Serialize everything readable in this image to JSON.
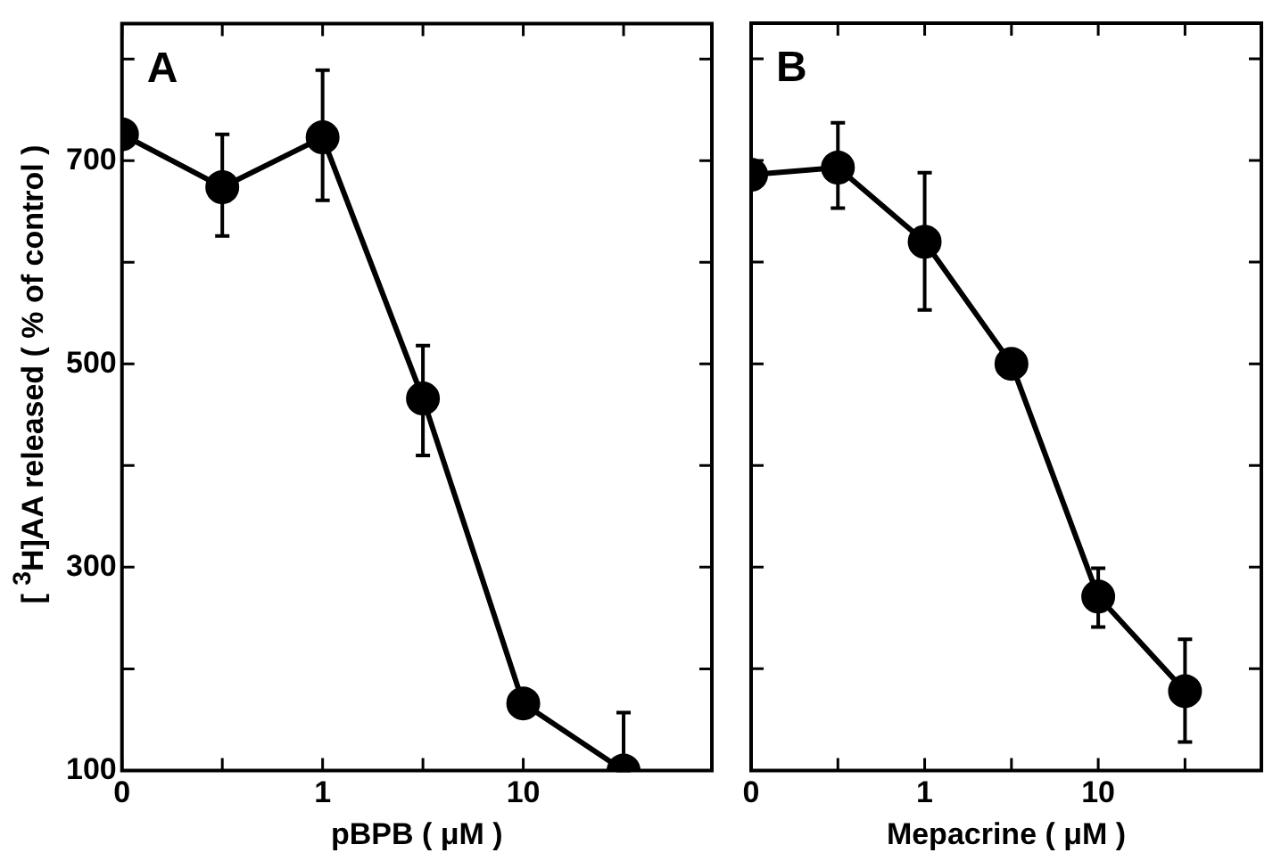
{
  "chart_data": [
    {
      "type": "line",
      "categories": [
        "0",
        null,
        "1",
        null,
        "10",
        null
      ],
      "xlabel": "pBPB ( μM )",
      "ylabel": "[ $^{3}$H]AA released ( % of control )",
      "ylim": [
        100,
        835
      ],
      "yticks": [
        100,
        {
          "value": 200,
          "label": null
        },
        300,
        {
          "value": 400,
          "label": null
        },
        500,
        {
          "value": 600,
          "label": null
        },
        700,
        {
          "value": 800,
          "label": null
        }
      ],
      "annotations": [
        "A"
      ],
      "marker": "circle",
      "line_style": "solid",
      "grid": false,
      "legend": false,
      "series": [
        {
          "color": "#000000",
          "values": [
            726,
            674,
            723,
            466,
            166,
            100
          ],
          "errors": [
            null,
            [
              626,
              726
            ],
            [
              661,
              789
            ],
            [
              410,
              518
            ],
            null,
            [
              100,
              157
            ]
          ]
        }
      ]
    },
    {
      "type": "line",
      "categories": [
        "0",
        null,
        "1",
        null,
        "10",
        null
      ],
      "xlabel": "Mepacrine ( μM )",
      "ylim": [
        100,
        835
      ],
      "yticks": [
        100,
        {
          "value": 200,
          "label": null
        },
        300,
        {
          "value": 400,
          "label": null
        },
        500,
        {
          "value": 600,
          "label": null
        },
        700,
        {
          "value": 800,
          "label": null
        }
      ],
      "tick_labels": "x",
      "annotations": [
        "B"
      ],
      "marker": "circle",
      "line_style": "solid",
      "grid": false,
      "legend": false,
      "series": [
        {
          "color": "#000000",
          "values": [
            686,
            693,
            620,
            500,
            271,
            178
          ],
          "errors": [
            null,
            [
              653,
              737
            ],
            [
              553,
              688
            ],
            null,
            [
              241,
              299
            ],
            [
              128,
              229
            ]
          ]
        }
      ]
    }
  ]
}
